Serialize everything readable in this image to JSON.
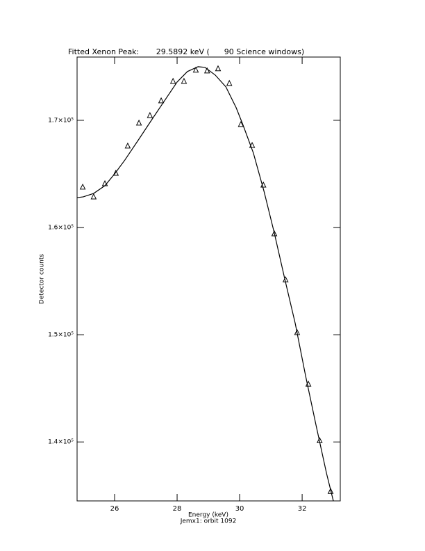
{
  "chart_data": {
    "type": "scatter",
    "title": "Fitted Xenon Peak:       29.5892 keV (      90 Science windows)",
    "x_label": "Energy (keV)",
    "subtitle": "Jemx1: orbit 1092",
    "y_label": "Detector counts",
    "xlim": [
      24.8,
      33.22
    ],
    "ylim": [
      134500,
      175900
    ],
    "xticks": [
      26,
      28,
      30,
      32
    ],
    "yticks": [
      {
        "value": 140000,
        "label": "1.4×10⁵"
      },
      {
        "value": 150000,
        "label": "1.5×10⁵"
      },
      {
        "value": 160000,
        "label": "1.6×10⁵"
      },
      {
        "value": 170000,
        "label": "1.7×10⁵"
      }
    ],
    "series": [
      {
        "marker": "triangle",
        "color": "#000000",
        "x": [
          24.98,
          25.33,
          25.69,
          26.04,
          26.42,
          26.78,
          27.13,
          27.49,
          27.87,
          28.22,
          28.6,
          28.96,
          29.31,
          29.67,
          30.04,
          30.4,
          30.76,
          31.11,
          31.47,
          31.84,
          32.2,
          32.56,
          32.91
        ],
        "values": [
          163770,
          162860,
          164090,
          165060,
          167600,
          169740,
          170450,
          171820,
          173640,
          173640,
          174680,
          174610,
          174810,
          173440,
          169610,
          167660,
          163960,
          159420,
          155130,
          150200,
          145390,
          140130,
          135390
        ]
      },
      {
        "marker": "line",
        "color": "#000000",
        "x": [
          24.8,
          25.0,
          25.33,
          25.69,
          26.0,
          26.33,
          26.78,
          27.22,
          27.67,
          28.0,
          28.33,
          28.67,
          28.89,
          29.22,
          29.56,
          29.89,
          30.11,
          30.44,
          30.78,
          31.11,
          31.44,
          31.78,
          32.11,
          32.44,
          32.78,
          33.0
        ],
        "values": [
          162790,
          162860,
          163180,
          163900,
          165000,
          166300,
          168250,
          170190,
          172140,
          173570,
          174550,
          175000,
          174940,
          174220,
          173120,
          171170,
          169550,
          166950,
          163380,
          159480,
          155260,
          151040,
          146170,
          141620,
          137070,
          134480
        ]
      }
    ]
  }
}
